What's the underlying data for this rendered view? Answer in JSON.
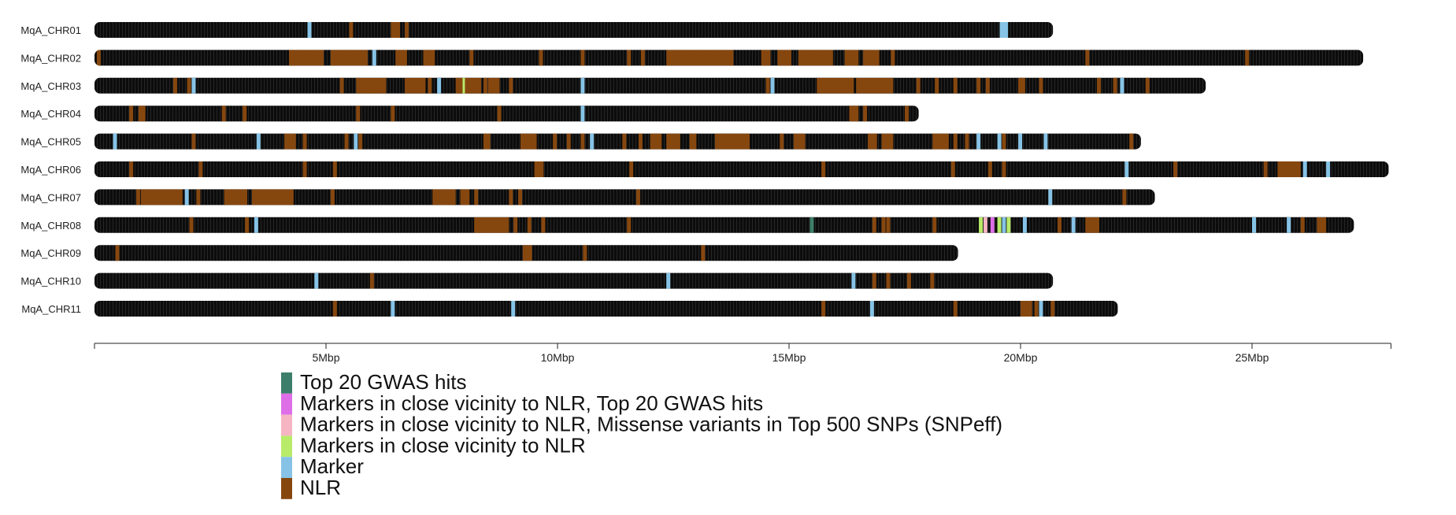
{
  "chart_data": {
    "type": "chromosome-ideogram",
    "x_unit": "Mbp",
    "x_range": [
      0,
      28
    ],
    "x_ticks": [
      {
        "value": 5,
        "label": "5Mbp"
      },
      {
        "value": 10,
        "label": "10Mbp"
      },
      {
        "value": 15,
        "label": "15Mbp"
      },
      {
        "value": 20,
        "label": "20Mbp"
      },
      {
        "value": 25,
        "label": "25Mbp"
      }
    ],
    "categories": {
      "gwas": {
        "label": "Top 20 GWAS hits",
        "color": "#3d7e6a"
      },
      "nlr_gwas": {
        "label": "Markers in close vicinity to NLR, Top 20 GWAS hits",
        "color": "#de6ee8"
      },
      "nlr_missense": {
        "label": "Markers in close vicinity to NLR, Missense variants in Top 500 SNPs (SNPeff)",
        "color": "#f5b5c3"
      },
      "near_nlr": {
        "label": "Markers in close vicinity to NLR",
        "color": "#b9eb6a"
      },
      "marker": {
        "label": "Marker",
        "color": "#86c3e6"
      },
      "nlr": {
        "label": "NLR",
        "color": "#86470f"
      }
    },
    "legend_order": [
      "gwas",
      "nlr_gwas",
      "nlr_missense",
      "near_nlr",
      "marker",
      "nlr"
    ],
    "chromosomes": [
      {
        "name": "MqA_CHR01",
        "length": 20.7,
        "features": [
          [
            4.6,
            "marker"
          ],
          [
            5.5,
            "nlr"
          ],
          [
            6.4,
            "nlr",
            0.2
          ],
          [
            6.7,
            "nlr"
          ],
          [
            19.55,
            "marker",
            0.18
          ]
        ]
      },
      {
        "name": "MqA_CHR02",
        "length": 27.4,
        "features": [
          [
            0.05,
            "nlr"
          ],
          [
            4.2,
            "nlr",
            0.75
          ],
          [
            5.1,
            "nlr",
            0.8
          ],
          [
            6.0,
            "marker"
          ],
          [
            6.5,
            "nlr",
            0.25
          ],
          [
            7.1,
            "nlr",
            0.25
          ],
          [
            8.1,
            "nlr"
          ],
          [
            9.6,
            "nlr"
          ],
          [
            10.5,
            "nlr"
          ],
          [
            11.5,
            "nlr"
          ],
          [
            11.8,
            "nlr"
          ],
          [
            12.35,
            "nlr",
            1.45
          ],
          [
            14.4,
            "nlr",
            0.2
          ],
          [
            14.75,
            "nlr",
            0.3
          ],
          [
            15.2,
            "nlr",
            0.75
          ],
          [
            16.2,
            "nlr",
            0.3
          ],
          [
            16.6,
            "nlr",
            0.35
          ],
          [
            17.2,
            "nlr"
          ],
          [
            21.4,
            "nlr"
          ],
          [
            24.85,
            "nlr"
          ]
        ]
      },
      {
        "name": "MqA_CHR03",
        "length": 24.0,
        "features": [
          [
            1.7,
            "nlr"
          ],
          [
            2.0,
            "nlr"
          ],
          [
            2.1,
            "marker"
          ],
          [
            5.3,
            "nlr"
          ],
          [
            5.7,
            "nlr"
          ],
          [
            5.65,
            "nlr",
            0.35
          ],
          [
            5.95,
            "nlr",
            0.35
          ],
          [
            6.7,
            "nlr",
            0.45
          ],
          [
            7.2,
            "nlr"
          ],
          [
            7.4,
            "marker"
          ],
          [
            7.8,
            "nlr",
            0.15
          ],
          [
            7.95,
            "near_nlr"
          ],
          [
            8.0,
            "nlr",
            0.35
          ],
          [
            8.4,
            "nlr"
          ],
          [
            8.5,
            "nlr",
            0.25
          ],
          [
            8.95,
            "nlr"
          ],
          [
            10.5,
            "marker"
          ],
          [
            14.5,
            "nlr"
          ],
          [
            14.6,
            "marker"
          ],
          [
            15.6,
            "nlr",
            0.8
          ],
          [
            16.45,
            "nlr",
            0.8
          ],
          [
            17.75,
            "nlr"
          ],
          [
            18.15,
            "nlr"
          ],
          [
            18.55,
            "nlr"
          ],
          [
            19.05,
            "nlr"
          ],
          [
            19.25,
            "nlr"
          ],
          [
            19.95,
            "nlr",
            0.15
          ],
          [
            20.4,
            "nlr"
          ],
          [
            21.65,
            "nlr"
          ],
          [
            22.0,
            "nlr"
          ],
          [
            22.15,
            "marker"
          ],
          [
            22.7,
            "nlr"
          ]
        ]
      },
      {
        "name": "MqA_CHR04",
        "length": 17.8,
        "features": [
          [
            0.75,
            "nlr"
          ],
          [
            0.95,
            "nlr",
            0.15
          ],
          [
            2.75,
            "nlr"
          ],
          [
            3.2,
            "nlr"
          ],
          [
            5.65,
            "nlr"
          ],
          [
            6.4,
            "nlr"
          ],
          [
            8.7,
            "nlr"
          ],
          [
            10.5,
            "marker"
          ],
          [
            16.3,
            "nlr",
            0.2
          ],
          [
            16.6,
            "nlr"
          ],
          [
            17.5,
            "nlr"
          ]
        ]
      },
      {
        "name": "MqA_CHR05",
        "length": 22.6,
        "features": [
          [
            0.4,
            "marker"
          ],
          [
            2.1,
            "nlr"
          ],
          [
            3.5,
            "marker"
          ],
          [
            4.1,
            "nlr",
            0.25
          ],
          [
            4.5,
            "nlr"
          ],
          [
            5.4,
            "nlr"
          ],
          [
            5.6,
            "marker"
          ],
          [
            5.7,
            "nlr"
          ],
          [
            8.4,
            "nlr",
            0.15
          ],
          [
            9.2,
            "nlr",
            0.35
          ],
          [
            9.9,
            "nlr"
          ],
          [
            10.2,
            "nlr"
          ],
          [
            10.5,
            "nlr"
          ],
          [
            10.7,
            "marker"
          ],
          [
            11.4,
            "nlr"
          ],
          [
            11.75,
            "nlr"
          ],
          [
            12.0,
            "nlr",
            0.25
          ],
          [
            12.35,
            "nlr",
            0.3
          ],
          [
            12.85,
            "nlr",
            0.15
          ],
          [
            13.4,
            "nlr",
            0.75
          ],
          [
            14.8,
            "nlr"
          ],
          [
            15.1,
            "nlr",
            0.25
          ],
          [
            16.7,
            "nlr",
            0.2
          ],
          [
            16.8,
            "nlr"
          ],
          [
            17.0,
            "nlr",
            0.25
          ],
          [
            18.1,
            "nlr",
            0.35
          ],
          [
            18.55,
            "nlr"
          ],
          [
            18.8,
            "nlr"
          ],
          [
            19.05,
            "marker"
          ],
          [
            19.5,
            "marker"
          ],
          [
            19.6,
            "nlr"
          ],
          [
            19.95,
            "marker"
          ],
          [
            20.5,
            "marker"
          ],
          [
            22.35,
            "nlr"
          ]
        ]
      },
      {
        "name": "MqA_CHR06",
        "length": 27.95,
        "features": [
          [
            0.75,
            "nlr"
          ],
          [
            2.25,
            "nlr"
          ],
          [
            4.5,
            "nlr"
          ],
          [
            5.15,
            "nlr"
          ],
          [
            9.5,
            "nlr",
            0.2
          ],
          [
            11.55,
            "nlr"
          ],
          [
            15.7,
            "nlr"
          ],
          [
            18.5,
            "nlr"
          ],
          [
            19.3,
            "nlr"
          ],
          [
            19.6,
            "nlr"
          ],
          [
            22.25,
            "marker"
          ],
          [
            23.3,
            "nlr"
          ],
          [
            25.25,
            "nlr"
          ],
          [
            25.95,
            "nlr"
          ],
          [
            25.55,
            "nlr",
            0.5
          ],
          [
            26.1,
            "marker"
          ],
          [
            26.6,
            "marker"
          ]
        ]
      },
      {
        "name": "MqA_CHR07",
        "length": 22.9,
        "features": [
          [
            0.9,
            "nlr"
          ],
          [
            1.0,
            "nlr",
            0.9
          ],
          [
            1.95,
            "marker"
          ],
          [
            2.2,
            "nlr"
          ],
          [
            2.8,
            "nlr",
            0.5
          ],
          [
            3.4,
            "nlr",
            0.9
          ],
          [
            5.1,
            "nlr"
          ],
          [
            7.3,
            "nlr",
            0.5
          ],
          [
            7.9,
            "nlr",
            0.2
          ],
          [
            8.2,
            "nlr"
          ],
          [
            8.95,
            "nlr"
          ],
          [
            9.15,
            "nlr"
          ],
          [
            11.7,
            "nlr"
          ],
          [
            20.6,
            "marker"
          ],
          [
            22.2,
            "nlr"
          ]
        ]
      },
      {
        "name": "MqA_CHR08",
        "length": 27.2,
        "features": [
          [
            2.05,
            "nlr"
          ],
          [
            3.25,
            "nlr"
          ],
          [
            3.45,
            "marker"
          ],
          [
            8.2,
            "nlr",
            0.75
          ],
          [
            9.05,
            "nlr"
          ],
          [
            9.35,
            "nlr"
          ],
          [
            9.65,
            "nlr"
          ],
          [
            11.5,
            "nlr"
          ],
          [
            15.45,
            "gwas"
          ],
          [
            16.8,
            "nlr"
          ],
          [
            17.0,
            "nlr"
          ],
          [
            17.1,
            "nlr"
          ],
          [
            18.1,
            "nlr"
          ],
          [
            19.1,
            "near_nlr"
          ],
          [
            19.2,
            "nlr_missense"
          ],
          [
            19.35,
            "nlr_gwas"
          ],
          [
            19.5,
            "near_nlr"
          ],
          [
            19.6,
            "marker"
          ],
          [
            19.7,
            "near_nlr"
          ],
          [
            20.05,
            "marker"
          ],
          [
            20.8,
            "nlr"
          ],
          [
            21.1,
            "marker"
          ],
          [
            21.4,
            "nlr",
            0.3
          ],
          [
            25.0,
            "marker"
          ],
          [
            25.75,
            "marker"
          ],
          [
            26.05,
            "nlr"
          ],
          [
            26.4,
            "nlr",
            0.2
          ]
        ]
      },
      {
        "name": "MqA_CHR09",
        "length": 18.65,
        "features": [
          [
            0.45,
            "nlr"
          ],
          [
            9.25,
            "nlr",
            0.2
          ],
          [
            10.55,
            "nlr"
          ],
          [
            13.1,
            "nlr"
          ]
        ]
      },
      {
        "name": "MqA_CHR10",
        "length": 20.7,
        "features": [
          [
            4.75,
            "marker"
          ],
          [
            5.95,
            "nlr"
          ],
          [
            12.35,
            "marker"
          ],
          [
            16.35,
            "marker"
          ],
          [
            16.8,
            "nlr"
          ],
          [
            17.1,
            "nlr"
          ],
          [
            17.55,
            "nlr"
          ],
          [
            18.05,
            "nlr"
          ]
        ]
      },
      {
        "name": "MqA_CHR11",
        "length": 22.1,
        "features": [
          [
            5.15,
            "nlr"
          ],
          [
            6.4,
            "marker"
          ],
          [
            9.0,
            "marker"
          ],
          [
            15.7,
            "nlr"
          ],
          [
            16.75,
            "marker"
          ],
          [
            18.55,
            "nlr"
          ],
          [
            20.0,
            "nlr",
            0.25
          ],
          [
            20.3,
            "nlr"
          ],
          [
            20.4,
            "marker"
          ],
          [
            20.65,
            "nlr"
          ]
        ]
      }
    ]
  }
}
